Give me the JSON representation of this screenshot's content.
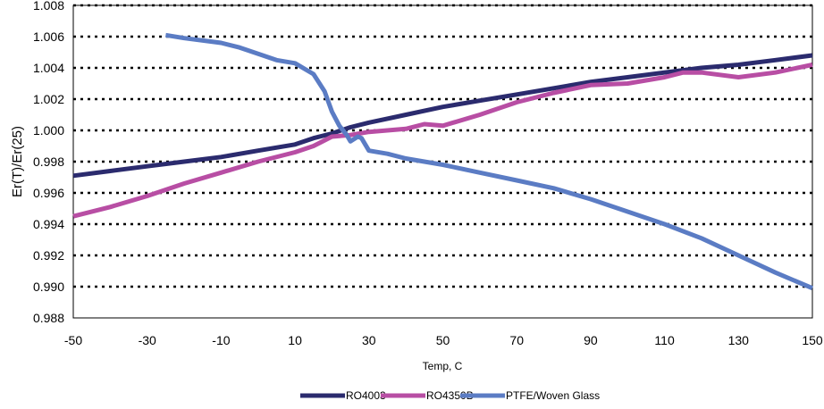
{
  "chart_data": {
    "type": "line",
    "xlabel": "Temp, C",
    "ylabel": "Er(T)/Er(25)",
    "xlim": [
      -50,
      150
    ],
    "ylim": [
      0.988,
      1.008
    ],
    "x_ticks": [
      "-50",
      "-30",
      "-10",
      "10",
      "30",
      "50",
      "70",
      "90",
      "110",
      "130",
      "150"
    ],
    "y_ticks": [
      "0.988",
      "0.990",
      "0.992",
      "0.994",
      "0.996",
      "0.998",
      "1.000",
      "1.002",
      "1.004",
      "1.006",
      "1.008"
    ],
    "grid": "horizontal dotted",
    "legend_position": "bottom",
    "series": [
      {
        "name": "RO4003",
        "color": "#2b2b6e",
        "points": [
          [
            -50,
            0.9971
          ],
          [
            -40,
            0.9974
          ],
          [
            -30,
            0.9977
          ],
          [
            -20,
            0.998
          ],
          [
            -10,
            0.9983
          ],
          [
            0,
            0.9987
          ],
          [
            10,
            0.9991
          ],
          [
            15,
            0.9995
          ],
          [
            20,
            0.9998
          ],
          [
            25,
            1.0002
          ],
          [
            30,
            1.0005
          ],
          [
            40,
            1.001
          ],
          [
            50,
            1.0015
          ],
          [
            60,
            1.0019
          ],
          [
            70,
            1.0023
          ],
          [
            80,
            1.0027
          ],
          [
            90,
            1.0031
          ],
          [
            100,
            1.0034
          ],
          [
            110,
            1.0037
          ],
          [
            120,
            1.004
          ],
          [
            130,
            1.0042
          ],
          [
            140,
            1.0045
          ],
          [
            150,
            1.0048
          ]
        ]
      },
      {
        "name": "RO4350B",
        "color": "#b84ea4",
        "points": [
          [
            -50,
            0.9945
          ],
          [
            -40,
            0.9951
          ],
          [
            -30,
            0.9958
          ],
          [
            -20,
            0.9966
          ],
          [
            -10,
            0.9973
          ],
          [
            0,
            0.998
          ],
          [
            10,
            0.9986
          ],
          [
            15,
            0.999
          ],
          [
            20,
            0.9996
          ],
          [
            25,
            0.9997
          ],
          [
            30,
            0.9999
          ],
          [
            40,
            1.0001
          ],
          [
            45,
            1.0004
          ],
          [
            50,
            1.0003
          ],
          [
            60,
            1.001
          ],
          [
            70,
            1.0018
          ],
          [
            80,
            1.0024
          ],
          [
            90,
            1.0029
          ],
          [
            100,
            1.003
          ],
          [
            110,
            1.0034
          ],
          [
            115,
            1.0037
          ],
          [
            120,
            1.0037
          ],
          [
            130,
            1.0034
          ],
          [
            140,
            1.0037
          ],
          [
            150,
            1.0042
          ]
        ]
      },
      {
        "name": "PTFE/Woven Glass",
        "color": "#5b7cc4",
        "points": [
          [
            -25,
            1.0061
          ],
          [
            -20,
            1.0059
          ],
          [
            -10,
            1.0056
          ],
          [
            -5,
            1.0053
          ],
          [
            0,
            1.0049
          ],
          [
            5,
            1.0045
          ],
          [
            10,
            1.0043
          ],
          [
            15,
            1.0036
          ],
          [
            18,
            1.0025
          ],
          [
            20,
            1.0012
          ],
          [
            22,
            1.0003
          ],
          [
            24,
            0.9997
          ],
          [
            25,
            0.9993
          ],
          [
            27,
            0.9996
          ],
          [
            28,
            0.9995
          ],
          [
            30,
            0.9987
          ],
          [
            35,
            0.9985
          ],
          [
            40,
            0.9982
          ],
          [
            50,
            0.9978
          ],
          [
            60,
            0.9973
          ],
          [
            70,
            0.9968
          ],
          [
            80,
            0.9963
          ],
          [
            90,
            0.9956
          ],
          [
            100,
            0.9948
          ],
          [
            110,
            0.994
          ],
          [
            120,
            0.9931
          ],
          [
            130,
            0.992
          ],
          [
            140,
            0.9909
          ],
          [
            150,
            0.9899
          ]
        ]
      }
    ]
  }
}
